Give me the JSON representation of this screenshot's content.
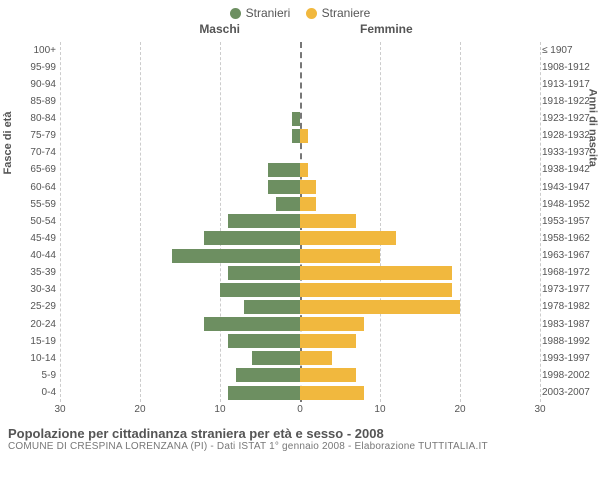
{
  "legend": {
    "male": {
      "label": "Stranieri",
      "color": "#6d8f61"
    },
    "female": {
      "label": "Straniere",
      "color": "#f1b83e"
    }
  },
  "headers": {
    "male": "Maschi",
    "female": "Femmine"
  },
  "axis_labels": {
    "left": "Fasce di età",
    "right": "Anni di nascita"
  },
  "chart": {
    "type": "population-pyramid",
    "x_max": 30,
    "x_ticks": [
      30,
      20,
      10,
      0,
      10,
      20,
      30
    ],
    "grid_positions_left": [
      30,
      20,
      10
    ],
    "grid_positions_right": [
      10,
      20,
      30
    ],
    "background_color": "#ffffff",
    "grid_color": "#cccccc",
    "center_color": "#777777",
    "bar_male_color": "#6d8f61",
    "bar_female_color": "#f1b83e",
    "row_height": 17.14,
    "age_groups": [
      {
        "age": "100+",
        "birth": "≤ 1907",
        "m": 0,
        "f": 0
      },
      {
        "age": "95-99",
        "birth": "1908-1912",
        "m": 0,
        "f": 0
      },
      {
        "age": "90-94",
        "birth": "1913-1917",
        "m": 0,
        "f": 0
      },
      {
        "age": "85-89",
        "birth": "1918-1922",
        "m": 0,
        "f": 0
      },
      {
        "age": "80-84",
        "birth": "1923-1927",
        "m": 1,
        "f": 0
      },
      {
        "age": "75-79",
        "birth": "1928-1932",
        "m": 1,
        "f": 1
      },
      {
        "age": "70-74",
        "birth": "1933-1937",
        "m": 0,
        "f": 0
      },
      {
        "age": "65-69",
        "birth": "1938-1942",
        "m": 4,
        "f": 1
      },
      {
        "age": "60-64",
        "birth": "1943-1947",
        "m": 4,
        "f": 2
      },
      {
        "age": "55-59",
        "birth": "1948-1952",
        "m": 3,
        "f": 2
      },
      {
        "age": "50-54",
        "birth": "1953-1957",
        "m": 9,
        "f": 7
      },
      {
        "age": "45-49",
        "birth": "1958-1962",
        "m": 12,
        "f": 12
      },
      {
        "age": "40-44",
        "birth": "1963-1967",
        "m": 16,
        "f": 10
      },
      {
        "age": "35-39",
        "birth": "1968-1972",
        "m": 9,
        "f": 19
      },
      {
        "age": "30-34",
        "birth": "1973-1977",
        "m": 10,
        "f": 19
      },
      {
        "age": "25-29",
        "birth": "1978-1982",
        "m": 7,
        "f": 20
      },
      {
        "age": "20-24",
        "birth": "1983-1987",
        "m": 12,
        "f": 8
      },
      {
        "age": "15-19",
        "birth": "1988-1992",
        "m": 9,
        "f": 7
      },
      {
        "age": "10-14",
        "birth": "1993-1997",
        "m": 6,
        "f": 4
      },
      {
        "age": "5-9",
        "birth": "1998-2002",
        "m": 8,
        "f": 7
      },
      {
        "age": "0-4",
        "birth": "2003-2007",
        "m": 9,
        "f": 8
      }
    ]
  },
  "footer": {
    "title": "Popolazione per cittadinanza straniera per età e sesso - 2008",
    "subtitle": "COMUNE DI CRESPINA LORENZANA (PI) - Dati ISTAT 1° gennaio 2008 - Elaborazione TUTTITALIA.IT"
  }
}
